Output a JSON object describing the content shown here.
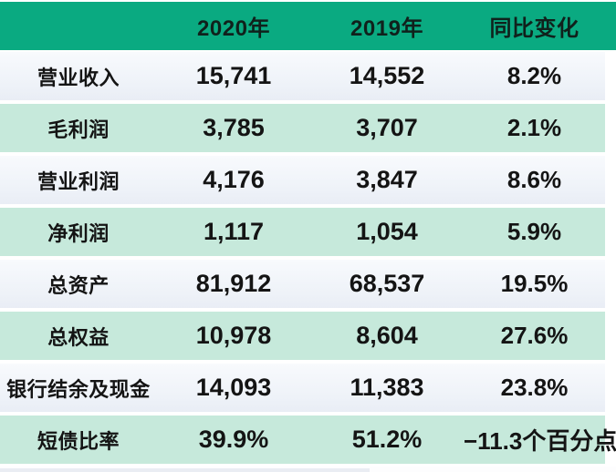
{
  "table": {
    "columns": [
      "",
      "2020年",
      "2019年",
      "同比变化"
    ],
    "rows": [
      {
        "label": "营业收入",
        "y2020": "15,741",
        "y2019": "14,552",
        "change": "8.2%"
      },
      {
        "label": "毛利润",
        "y2020": "3,785",
        "y2019": "3,707",
        "change": "2.1%"
      },
      {
        "label": "营业利润",
        "y2020": "4,176",
        "y2019": "3,847",
        "change": "8.6%"
      },
      {
        "label": "净利润",
        "y2020": "1,117",
        "y2019": "1,054",
        "change": "5.9%"
      },
      {
        "label": "总资产",
        "y2020": "81,912",
        "y2019": "68,537",
        "change": "19.5%"
      },
      {
        "label": "总权益",
        "y2020": "10,978",
        "y2019": "8,604",
        "change": "27.6%"
      },
      {
        "label": "银行结余及现金",
        "y2020": "14,093",
        "y2019": "11,383",
        "change": "23.8%"
      },
      {
        "label": "短债比率",
        "y2020": "39.9%",
        "y2019": "51.2%",
        "change": "−11.3个百分点"
      }
    ]
  },
  "colors": {
    "header_green": "#0aaa81",
    "mint_row": "#c6e9db",
    "light_row_top": "#f8fafd",
    "light_row_bottom": "#e9edf5",
    "text": "#141414"
  }
}
